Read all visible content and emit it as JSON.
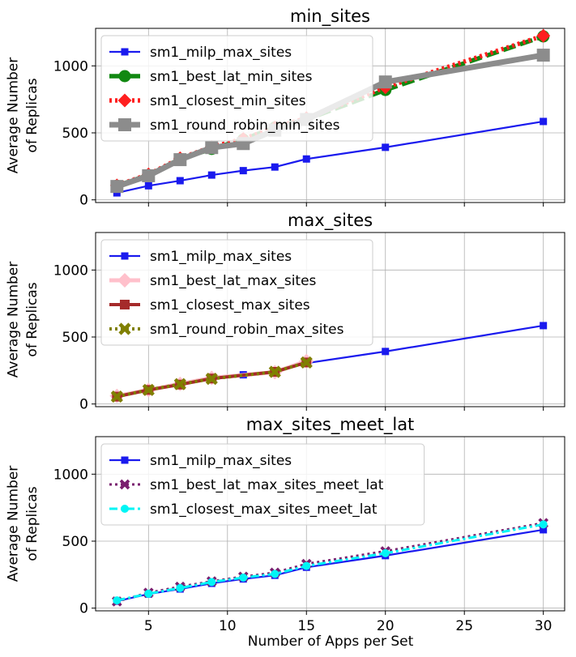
{
  "figure": {
    "xlabel": "Number of Apps per Set",
    "ylabel_line1": "Average Number",
    "ylabel_line2": "of Replicas"
  },
  "chart_data": [
    {
      "type": "line",
      "title": "min_sites",
      "xlim": [
        1.65,
        31.35
      ],
      "ylim": [
        -20,
        1280
      ],
      "xticks": [
        5,
        10,
        15,
        20,
        25,
        30
      ],
      "yticks": [
        0,
        500,
        1000
      ],
      "grid": true,
      "legend": "top-left",
      "series": [
        {
          "name": "sm1_milp_max_sites",
          "color": "#1a1aee",
          "style": "solid",
          "marker": "square",
          "width": 2.2,
          "msize": 4.5,
          "x": [
            3,
            5,
            7,
            9,
            11,
            13,
            15,
            20,
            30
          ],
          "y": [
            52,
            105,
            143,
            185,
            218,
            245,
            305,
            392,
            585
          ]
        },
        {
          "name": "sm1_best_lat_min_sites",
          "color": "#118811",
          "style": "dashed",
          "marker": "circle",
          "width": 5.5,
          "msize": 7.5,
          "x": [
            3,
            5,
            7,
            9,
            11,
            13,
            15,
            20,
            30
          ],
          "y": [
            105,
            185,
            305,
            380,
            450,
            540,
            600,
            820,
            1220
          ]
        },
        {
          "name": "sm1_closest_min_sites",
          "color": "#ff1f1f",
          "style": "dotted",
          "marker": "diamond",
          "width": 5.5,
          "msize": 8.5,
          "x": [
            3,
            5,
            7,
            9,
            11,
            13,
            15,
            20,
            30
          ],
          "y": [
            108,
            190,
            310,
            395,
            455,
            540,
            610,
            840,
            1225
          ]
        },
        {
          "name": "sm1_round_robin_min_sites",
          "color": "#8c8c8c",
          "style": "solid",
          "marker": "square",
          "width": 7,
          "msize": 8,
          "x": [
            3,
            5,
            7,
            9,
            11,
            13,
            15,
            20,
            30
          ],
          "y": [
            100,
            180,
            300,
            390,
            420,
            520,
            600,
            880,
            1080
          ]
        }
      ]
    },
    {
      "type": "line",
      "title": "max_sites",
      "xlim": [
        1.65,
        31.35
      ],
      "ylim": [
        -20,
        1280
      ],
      "xticks": [
        5,
        10,
        15,
        20,
        25,
        30
      ],
      "yticks": [
        0,
        500,
        1000
      ],
      "grid": true,
      "legend": "top-left",
      "series": [
        {
          "name": "sm1_milp_max_sites",
          "color": "#1a1aee",
          "style": "solid",
          "marker": "square",
          "width": 2.2,
          "msize": 4.5,
          "x": [
            3,
            5,
            7,
            9,
            11,
            13,
            15,
            20,
            30
          ],
          "y": [
            52,
            105,
            143,
            185,
            218,
            245,
            305,
            392,
            585
          ]
        },
        {
          "name": "sm1_best_lat_max_sites",
          "color": "#ffc0cb",
          "style": "solid",
          "marker": "diamond",
          "width": 5,
          "msize": 9,
          "x": [
            3,
            5,
            7,
            9,
            13,
            15
          ],
          "y": [
            60,
            105,
            150,
            195,
            238,
            320
          ]
        },
        {
          "name": "sm1_closest_max_sites",
          "color": "#a52a2a",
          "style": "solid",
          "marker": "square",
          "width": 4,
          "msize": 6,
          "x": [
            3,
            5,
            7,
            9,
            13,
            15
          ],
          "y": [
            55,
            105,
            145,
            190,
            240,
            310
          ]
        },
        {
          "name": "sm1_round_robin_max_sites",
          "color": "#808000",
          "style": "dotted",
          "marker": "x",
          "width": 4,
          "msize": 6,
          "x": [
            3,
            5,
            7,
            9,
            13,
            15
          ],
          "y": [
            55,
            105,
            148,
            188,
            240,
            310
          ]
        }
      ]
    },
    {
      "type": "line",
      "title": "max_sites_meet_lat",
      "xlim": [
        1.65,
        31.35
      ],
      "ylim": [
        -20,
        1280
      ],
      "xticks": [
        5,
        10,
        15,
        20,
        25,
        30
      ],
      "yticks": [
        0,
        500,
        1000
      ],
      "grid": true,
      "legend": "top-left",
      "series": [
        {
          "name": "sm1_milp_max_sites",
          "color": "#1a1aee",
          "style": "solid",
          "marker": "square",
          "width": 2.2,
          "msize": 4.5,
          "x": [
            3,
            5,
            7,
            9,
            11,
            13,
            15,
            20,
            30
          ],
          "y": [
            52,
            105,
            143,
            185,
            218,
            245,
            305,
            392,
            585
          ]
        },
        {
          "name": "sm1_best_lat_max_sites_meet_lat",
          "color": "#7a1f6f",
          "style": "dotted",
          "marker": "x",
          "width": 3,
          "msize": 5,
          "x": [
            3,
            5,
            7,
            9,
            11,
            13,
            15,
            20,
            30
          ],
          "y": [
            50,
            115,
            160,
            200,
            235,
            265,
            330,
            425,
            635
          ]
        },
        {
          "name": "sm1_closest_max_sites_meet_lat",
          "color": "#00f5f5",
          "style": "dashdot",
          "marker": "circle",
          "width": 3,
          "msize": 5,
          "x": [
            3,
            5,
            7,
            9,
            11,
            13,
            15,
            20,
            30
          ],
          "y": [
            58,
            108,
            150,
            195,
            228,
            255,
            315,
            410,
            625
          ]
        }
      ]
    }
  ]
}
